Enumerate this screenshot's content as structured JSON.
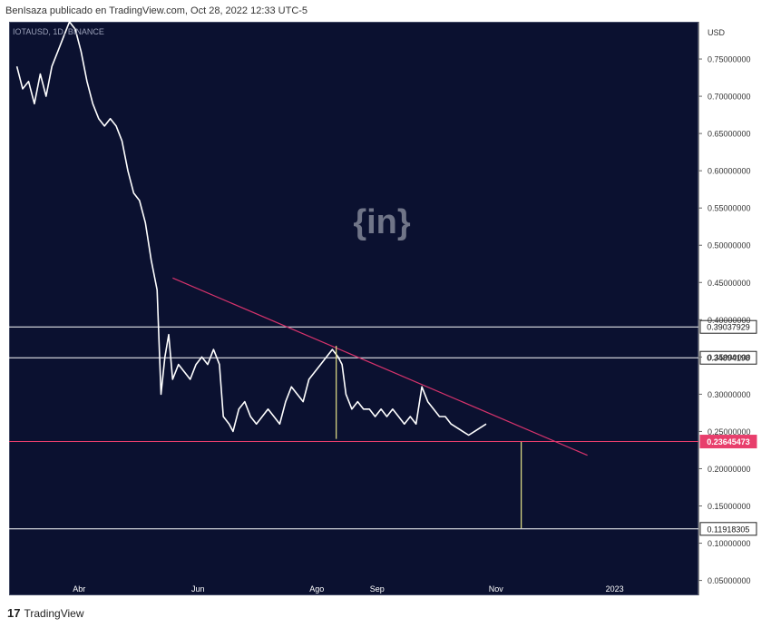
{
  "header": {
    "attribution": "BenIsaza publicado en TradingView.com, Oct 28, 2022 12:33 UTC-5"
  },
  "symbol_label": "IOTAUSD, 1D, BINANCE",
  "currency_label": "USD",
  "watermark": "{in}",
  "footer": {
    "logo_icon": "tradingview-logo-icon",
    "brand": "TradingView"
  },
  "colors": {
    "background": "#0b1130",
    "price_line": "#ffffff",
    "trendline": "#d6336c",
    "support_line": "#e83e6c",
    "vertical_marker": "#e6e38a",
    "level_line": "#ffffff"
  },
  "chart_data": {
    "type": "line",
    "title": "",
    "xlabel": "",
    "ylabel": "USD",
    "ylim": [
      0.03,
      0.8
    ],
    "yticks": [
      0.05,
      0.1,
      0.15,
      0.2,
      0.25,
      0.3,
      0.35,
      0.4,
      0.45,
      0.5,
      0.55,
      0.6,
      0.65,
      0.7,
      0.75
    ],
    "ytick_labels": [
      "0.05000000",
      "0.10000000",
      "0.15000000",
      "0.20000000",
      "0.25000000",
      "0.30000000",
      "0.35000000",
      "0.40000000",
      "0.45000000",
      "0.50000000",
      "0.55000000",
      "0.60000000",
      "0.65000000",
      "0.70000000",
      "0.75000000"
    ],
    "xtick_labels": [
      {
        "label": "Abr",
        "date": "2022-04-01"
      },
      {
        "label": "Jun",
        "date": "2022-06-01"
      },
      {
        "label": "Ago",
        "date": "2022-08-01"
      },
      {
        "label": "Sep",
        "date": "2022-09-01"
      },
      {
        "label": "Nov",
        "date": "2022-11-01"
      },
      {
        "label": "2023",
        "date": "2023-01-01"
      }
    ],
    "xlim": [
      "2022-02-24",
      "2023-02-13"
    ],
    "grid": false,
    "series": [
      {
        "points": [
          [
            "2022-02-28",
            0.74
          ],
          [
            "2022-03-03",
            0.71
          ],
          [
            "2022-03-06",
            0.72
          ],
          [
            "2022-03-09",
            0.69
          ],
          [
            "2022-03-12",
            0.73
          ],
          [
            "2022-03-15",
            0.7
          ],
          [
            "2022-03-18",
            0.74
          ],
          [
            "2022-03-21",
            0.76
          ],
          [
            "2022-03-24",
            0.78
          ],
          [
            "2022-03-27",
            0.8
          ],
          [
            "2022-03-30",
            0.79
          ],
          [
            "2022-04-02",
            0.76
          ],
          [
            "2022-04-05",
            0.72
          ],
          [
            "2022-04-08",
            0.69
          ],
          [
            "2022-04-11",
            0.67
          ],
          [
            "2022-04-14",
            0.66
          ],
          [
            "2022-04-17",
            0.67
          ],
          [
            "2022-04-20",
            0.66
          ],
          [
            "2022-04-23",
            0.64
          ],
          [
            "2022-04-26",
            0.6
          ],
          [
            "2022-04-29",
            0.57
          ],
          [
            "2022-05-02",
            0.56
          ],
          [
            "2022-05-05",
            0.53
          ],
          [
            "2022-05-08",
            0.48
          ],
          [
            "2022-05-11",
            0.44
          ],
          [
            "2022-05-13",
            0.3
          ],
          [
            "2022-05-15",
            0.35
          ],
          [
            "2022-05-17",
            0.38
          ],
          [
            "2022-05-19",
            0.32
          ],
          [
            "2022-05-22",
            0.34
          ],
          [
            "2022-05-25",
            0.33
          ],
          [
            "2022-05-28",
            0.32
          ],
          [
            "2022-05-31",
            0.34
          ],
          [
            "2022-06-03",
            0.35
          ],
          [
            "2022-06-06",
            0.34
          ],
          [
            "2022-06-09",
            0.36
          ],
          [
            "2022-06-12",
            0.34
          ],
          [
            "2022-06-14",
            0.27
          ],
          [
            "2022-06-17",
            0.26
          ],
          [
            "2022-06-19",
            0.25
          ],
          [
            "2022-06-22",
            0.28
          ],
          [
            "2022-06-25",
            0.29
          ],
          [
            "2022-06-28",
            0.27
          ],
          [
            "2022-07-01",
            0.26
          ],
          [
            "2022-07-04",
            0.27
          ],
          [
            "2022-07-07",
            0.28
          ],
          [
            "2022-07-10",
            0.27
          ],
          [
            "2022-07-13",
            0.26
          ],
          [
            "2022-07-16",
            0.29
          ],
          [
            "2022-07-19",
            0.31
          ],
          [
            "2022-07-22",
            0.3
          ],
          [
            "2022-07-25",
            0.29
          ],
          [
            "2022-07-28",
            0.32
          ],
          [
            "2022-07-31",
            0.33
          ],
          [
            "2022-08-03",
            0.34
          ],
          [
            "2022-08-06",
            0.35
          ],
          [
            "2022-08-09",
            0.36
          ],
          [
            "2022-08-12",
            0.35
          ],
          [
            "2022-08-14",
            0.34
          ],
          [
            "2022-08-16",
            0.3
          ],
          [
            "2022-08-19",
            0.28
          ],
          [
            "2022-08-22",
            0.29
          ],
          [
            "2022-08-25",
            0.28
          ],
          [
            "2022-08-28",
            0.28
          ],
          [
            "2022-08-31",
            0.27
          ],
          [
            "2022-09-03",
            0.28
          ],
          [
            "2022-09-06",
            0.27
          ],
          [
            "2022-09-09",
            0.28
          ],
          [
            "2022-09-12",
            0.27
          ],
          [
            "2022-09-15",
            0.26
          ],
          [
            "2022-09-18",
            0.27
          ],
          [
            "2022-09-21",
            0.26
          ],
          [
            "2022-09-24",
            0.31
          ],
          [
            "2022-09-27",
            0.29
          ],
          [
            "2022-09-30",
            0.28
          ],
          [
            "2022-10-03",
            0.27
          ],
          [
            "2022-10-06",
            0.27
          ],
          [
            "2022-10-09",
            0.26
          ],
          [
            "2022-10-12",
            0.255
          ],
          [
            "2022-10-15",
            0.25
          ],
          [
            "2022-10-18",
            0.245
          ],
          [
            "2022-10-21",
            0.25
          ],
          [
            "2022-10-24",
            0.255
          ],
          [
            "2022-10-27",
            0.26
          ]
        ]
      }
    ],
    "horizontal_levels": [
      {
        "value": 0.39037929,
        "label": "0.39037929",
        "style": "white"
      },
      {
        "value": 0.34894198,
        "label": "0.34894198",
        "style": "white"
      },
      {
        "value": 0.23645473,
        "label": "0.23645473",
        "style": "support"
      },
      {
        "value": 0.11918305,
        "label": "0.11918305",
        "style": "white"
      }
    ],
    "trendline": {
      "from": [
        "2022-05-19",
        0.456
      ],
      "to": [
        "2022-12-18",
        0.218
      ]
    },
    "vertical_markers": [
      {
        "date": "2022-08-11",
        "from": 0.24,
        "to": 0.365
      },
      {
        "date": "2022-11-14",
        "from": 0.12,
        "to": 0.236
      }
    ]
  }
}
